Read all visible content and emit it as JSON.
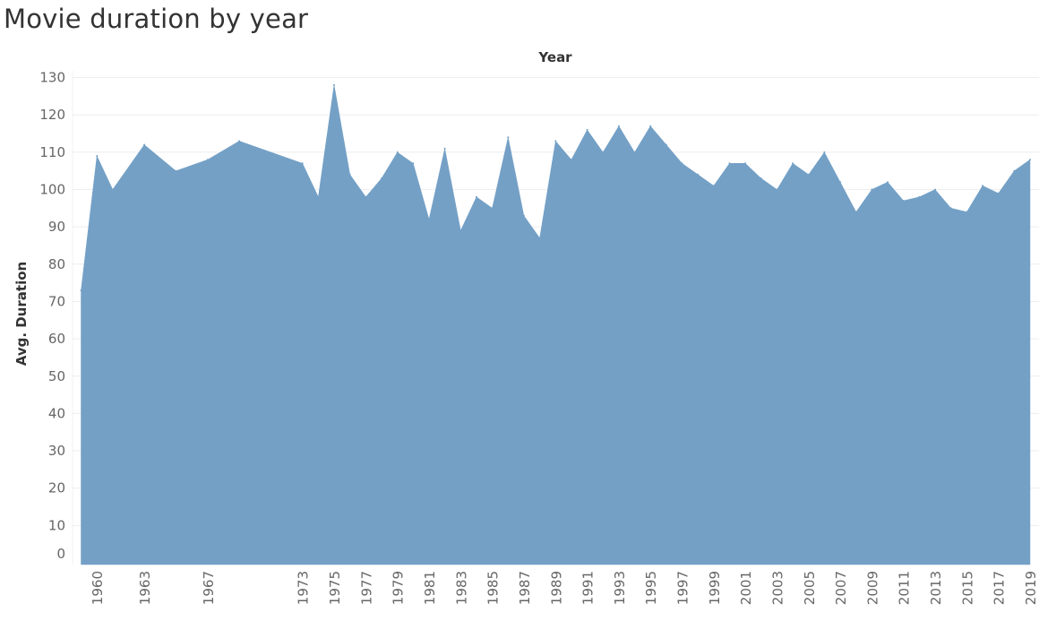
{
  "title": "Movie duration by year",
  "chart_data": {
    "type": "area",
    "title": "Movie duration by year",
    "xlabel": "Year",
    "ylabel": "Avg. Duration",
    "ylim": [
      0,
      130
    ],
    "yticks": [
      0,
      10,
      20,
      30,
      40,
      50,
      60,
      70,
      80,
      90,
      100,
      110,
      120,
      130
    ],
    "xticks": [
      1960,
      1963,
      1967,
      1973,
      1975,
      1977,
      1979,
      1981,
      1983,
      1985,
      1987,
      1989,
      1991,
      1993,
      1995,
      1997,
      1999,
      2001,
      2003,
      2005,
      2007,
      2009,
      2011,
      2013,
      2015,
      2017,
      2019
    ],
    "color": "#74a0c6",
    "grid": true,
    "x": [
      1959,
      1960,
      1961,
      1963,
      1965,
      1967,
      1969,
      1973,
      1974,
      1975,
      1976,
      1977,
      1978,
      1979,
      1980,
      1981,
      1982,
      1983,
      1984,
      1985,
      1986,
      1987,
      1988,
      1989,
      1990,
      1991,
      1992,
      1993,
      1994,
      1995,
      1996,
      1997,
      1998,
      1999,
      2000,
      2001,
      2002,
      2003,
      2004,
      2005,
      2006,
      2007,
      2008,
      2009,
      2010,
      2011,
      2012,
      2013,
      2014,
      2015,
      2016,
      2017,
      2018,
      2019
    ],
    "values": [
      73,
      109,
      100,
      112,
      105,
      108,
      113,
      107,
      98,
      128,
      104,
      98,
      103,
      110,
      107,
      92,
      111,
      89,
      98,
      95,
      114,
      93,
      87,
      113,
      108,
      116,
      110,
      117,
      110,
      117,
      112,
      107,
      104,
      101,
      107,
      107,
      103,
      100,
      107,
      104,
      110,
      102,
      94,
      100,
      102,
      97,
      98,
      100,
      95,
      94,
      101,
      99,
      105,
      108
    ]
  }
}
